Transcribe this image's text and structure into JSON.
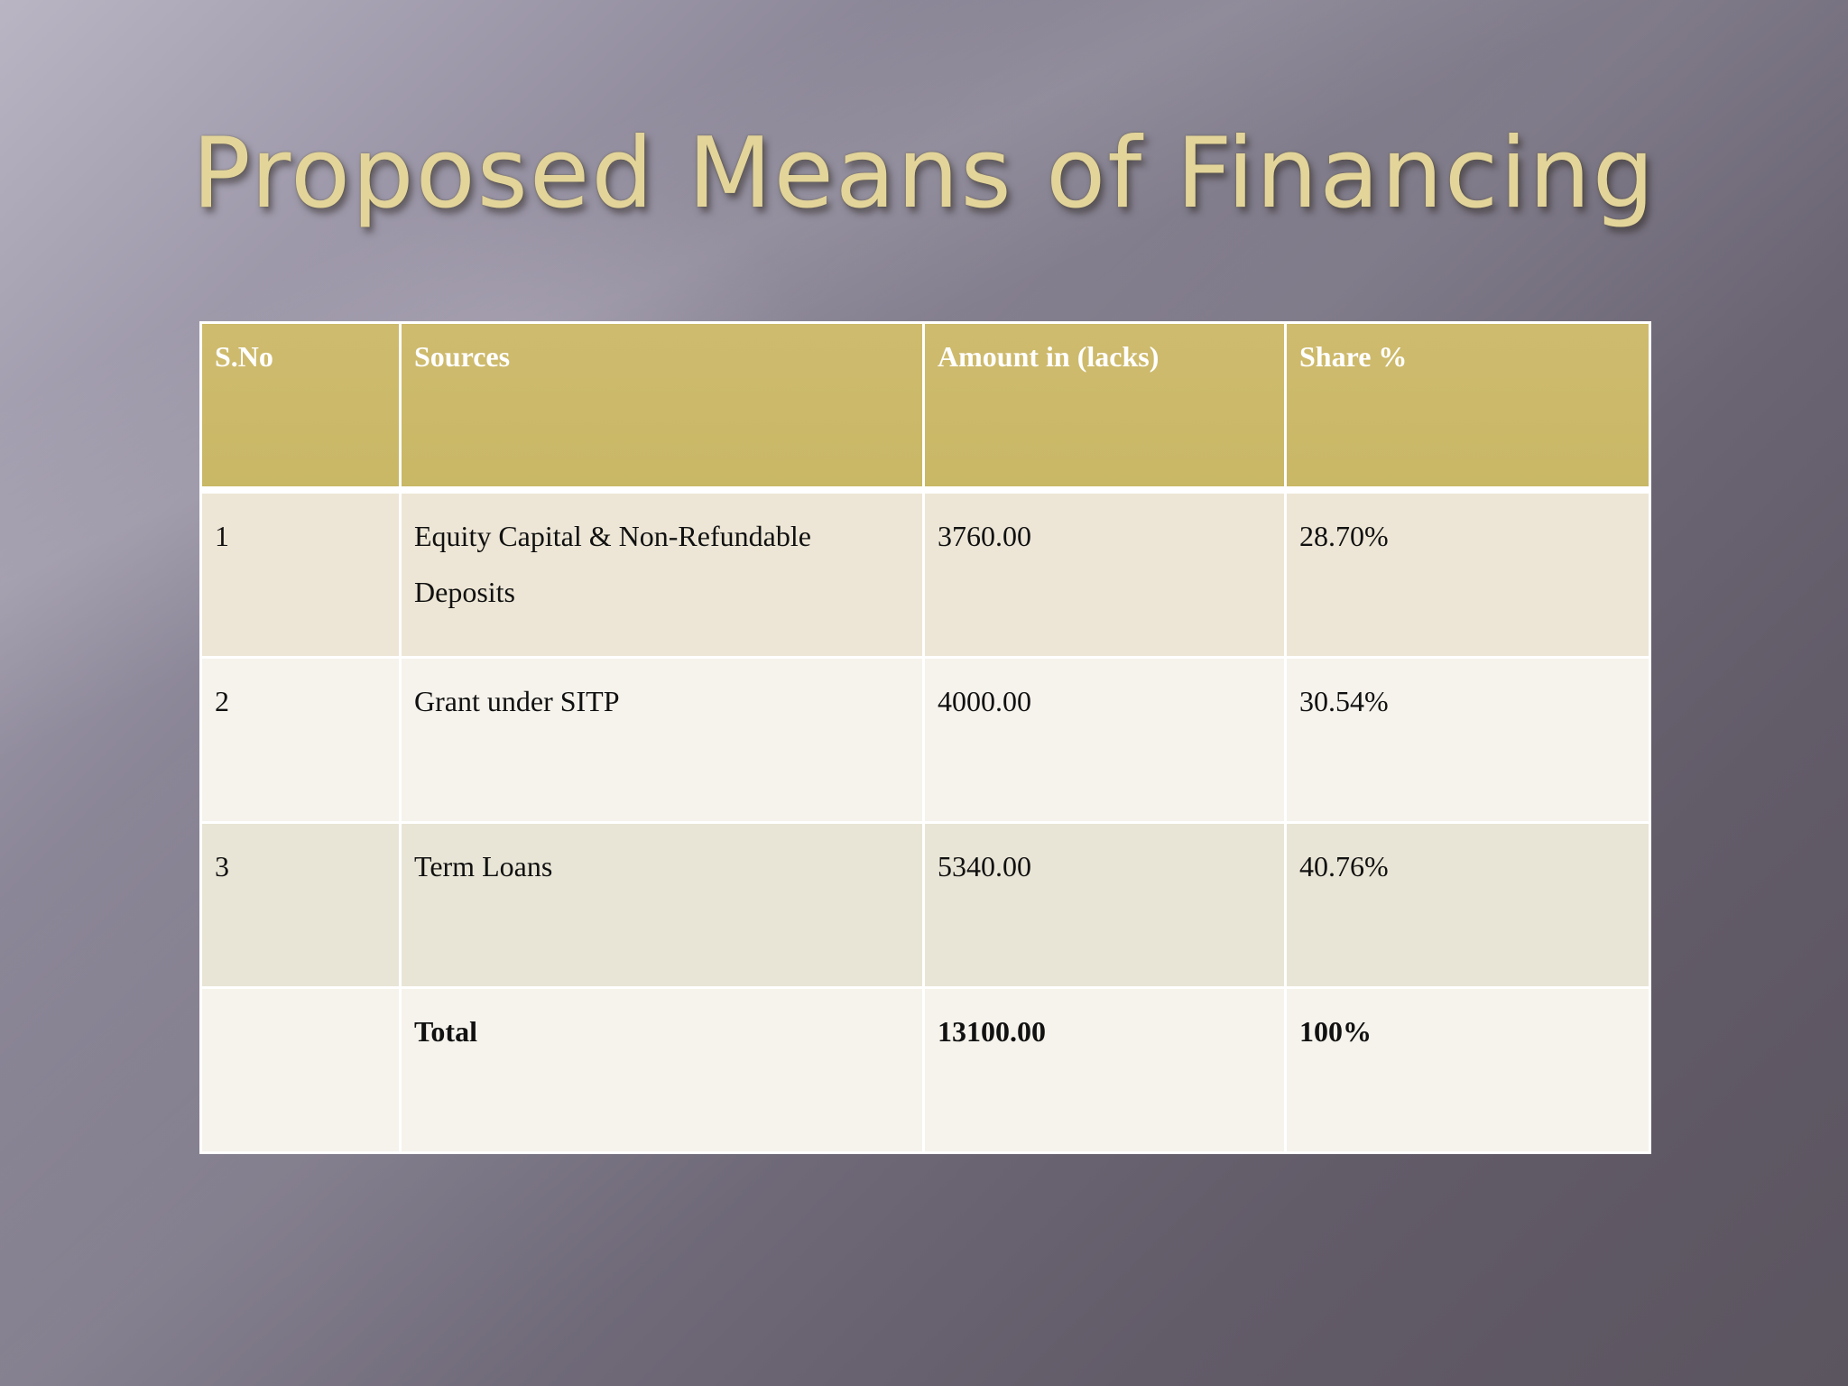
{
  "slide": {
    "title": "Proposed Means of Financing"
  },
  "table": {
    "headers": [
      "S.No",
      "Sources",
      "Amount in (lacks)",
      "Share %"
    ],
    "rows": [
      {
        "sno": "1",
        "source": "Equity Capital & Non-Refundable Deposits",
        "amount": "3760.00",
        "share": "28.70%"
      },
      {
        "sno": "2",
        "source": "Grant under SITP",
        "amount": "4000.00",
        "share": "30.54%"
      },
      {
        "sno": "3",
        "source": "Term Loans",
        "amount": "5340.00",
        "share": "40.76%"
      }
    ],
    "total": {
      "sno": "",
      "label": "Total",
      "amount": "13100.00",
      "share": "100%"
    }
  },
  "colors": {
    "header_bg": "#cdb96c",
    "title_text": "#e3d59a",
    "row_odd": "#ede6d6",
    "row_even": "#f6f3ec"
  }
}
